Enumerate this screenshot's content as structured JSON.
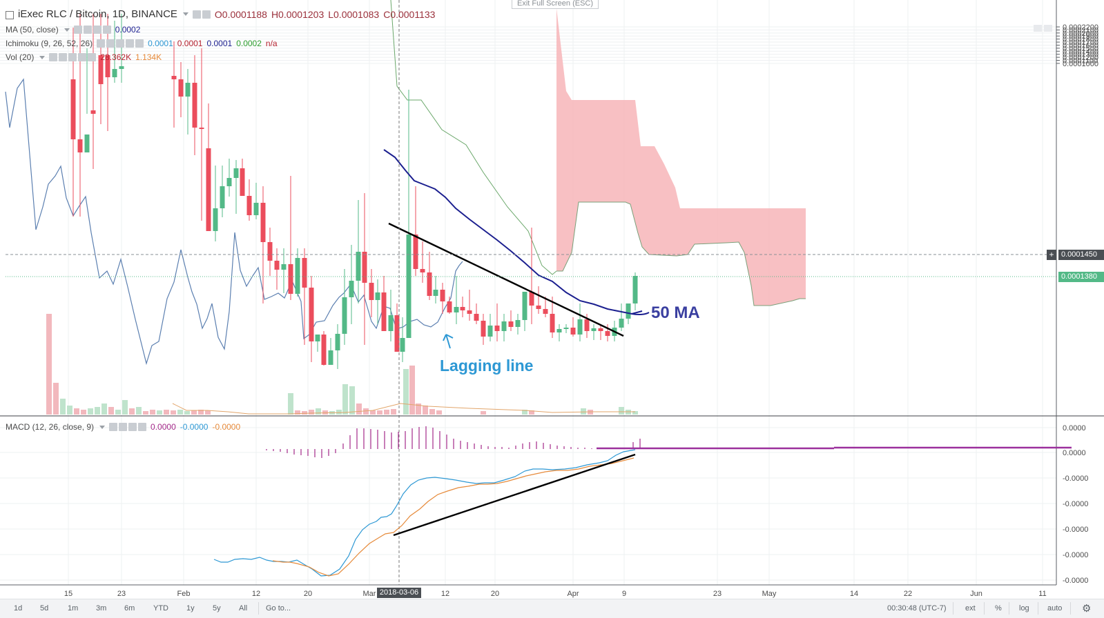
{
  "top": {
    "exit_fullscreen": "Exit Full Screen (ESC)"
  },
  "legend": {
    "symbol": "iExec RLC / Bitcoin, 1D, BINANCE",
    "ohlc": {
      "o": "O0.0001188",
      "h": "H0.0001203",
      "l": "L0.0001083",
      "c": "C0.0001133"
    },
    "ma": {
      "label": "MA (50, close)",
      "value": "0.0002"
    },
    "ichimoku": {
      "label": "Ichimoku (9, 26, 52, 26)",
      "v1": "0.0001",
      "v2": "0.0001",
      "v3": "0.0001",
      "v4": "0.0002",
      "v5": "n/a"
    },
    "vol": {
      "label": "Vol (20)",
      "v1": "28.362K",
      "v2": "1.134K"
    },
    "macd": {
      "label": "MACD (12, 26, close, 9)",
      "v1": "0.0000",
      "v2": "-0.0000",
      "v3": "-0.0000"
    }
  },
  "price_axis": {
    "ticks": [
      "0.0002200",
      "0.0002100",
      "0.0002000",
      "0.0001900",
      "0.0001800",
      "0.0001700",
      "0.0001600",
      "0.0001500",
      "0.0001400",
      "0.0001300",
      "0.0001200",
      "0.0001100",
      "0.0001000"
    ],
    "marker_dashed": "0.0001450",
    "marker_last": "0.0001380"
  },
  "macd_axis": {
    "ticks": [
      "0.0000",
      "0.0000",
      "-0.0000",
      "-0.0000",
      "-0.0000",
      "-0.0000",
      "-0.0000"
    ]
  },
  "time_axis": {
    "labels": [
      "15",
      "23",
      "Feb",
      "12",
      "20",
      "Mar",
      "12",
      "20",
      "Apr",
      "9",
      "23",
      "May",
      "14",
      "22",
      "Jun",
      "11"
    ],
    "crosshair_label": "2018-03-06"
  },
  "annotations": {
    "ma50": "50 MA",
    "lagging": "Lagging line"
  },
  "bottom_bar": {
    "ranges": [
      "1d",
      "5d",
      "1m",
      "3m",
      "6m",
      "YTD",
      "1y",
      "5y",
      "All"
    ],
    "goto": "Go to...",
    "time": "00:30:48 (UTC-7)",
    "opts": [
      "ext",
      "%",
      "log",
      "auto"
    ]
  },
  "colors": {
    "up": "#53b987",
    "down": "#eb4d5c",
    "ma50": "#1b1f8f",
    "lagging": "#5b7fb0",
    "baseline": "#2e9e2e",
    "cloud": "#f7b5b8",
    "macd": "#2196f3",
    "signal": "#ff9800",
    "histogram": "#a42889",
    "annotation": "#2d98d4"
  }
}
